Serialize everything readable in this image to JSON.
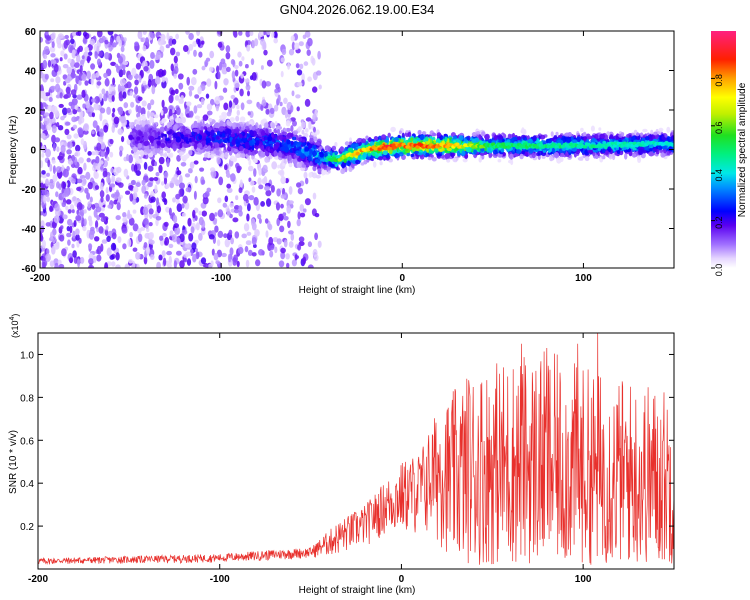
{
  "title": "GN04.2026.062.19.00.E34",
  "chart_data": [
    {
      "type": "heatmap",
      "title": "GN04.2026.062.19.00.E34",
      "xlabel": "Height of straight line (km)",
      "ylabel": "Frequency (Hz)",
      "xlim": [
        -200,
        150
      ],
      "ylim": [
        -60,
        60
      ],
      "xticks": [
        -200,
        -100,
        0,
        100
      ],
      "xtick_labels": [
        "-200",
        "-100",
        "0",
        "100"
      ],
      "yticks": [
        60,
        40,
        20,
        0,
        -20,
        -40,
        -60
      ],
      "ytick_labels": [
        "60",
        "40",
        "20",
        "0",
        "-20",
        "-40",
        "-60"
      ],
      "colorbar": {
        "label": "Normalized spectral amplitude",
        "range": [
          0,
          1
        ],
        "ticks": [
          0.0,
          0.2,
          0.4,
          0.6,
          0.8
        ],
        "tick_labels": [
          "0.0",
          "0.2",
          "0.4",
          "0.6",
          "0.8"
        ]
      },
      "ridge_frequency": [
        {
          "x": -145,
          "y": 6
        },
        {
          "x": -100,
          "y": 6
        },
        {
          "x": -60,
          "y": 2
        },
        {
          "x": -45,
          "y": -4
        },
        {
          "x": -35,
          "y": -5
        },
        {
          "x": -20,
          "y": 0
        },
        {
          "x": 0,
          "y": 2
        },
        {
          "x": 20,
          "y": 2
        },
        {
          "x": 50,
          "y": 2
        },
        {
          "x": 100,
          "y": 2
        },
        {
          "x": 150,
          "y": 3
        }
      ],
      "ridge_peak_amplitude": [
        {
          "x": -145,
          "y": 0.2
        },
        {
          "x": -100,
          "y": 0.3
        },
        {
          "x": -60,
          "y": 0.35
        },
        {
          "x": -45,
          "y": 0.45
        },
        {
          "x": -30,
          "y": 0.75
        },
        {
          "x": -10,
          "y": 0.95
        },
        {
          "x": 0,
          "y": 0.9
        },
        {
          "x": 20,
          "y": 0.9
        },
        {
          "x": 50,
          "y": 0.55
        },
        {
          "x": 100,
          "y": 0.5
        },
        {
          "x": 150,
          "y": 0.45
        }
      ],
      "noise_cutoff_x": -45
    },
    {
      "type": "line",
      "xlabel": "Height of straight line (km)",
      "ylabel": "SNR (10 * v/v)",
      "multiplier_label": "(x10",
      "multiplier_exponent": "4",
      "multiplier_close": ")",
      "xlim": [
        -200,
        150
      ],
      "ylim": [
        0,
        1.1
      ],
      "xticks": [
        -200,
        -100,
        0,
        100
      ],
      "xtick_labels": [
        "-200",
        "-100",
        "0",
        "100"
      ],
      "yticks": [
        0.2,
        0.4,
        0.6,
        0.8,
        1.0
      ],
      "ytick_labels": [
        "0.2",
        "0.4",
        "0.6",
        "0.8",
        "1.0"
      ],
      "color": "#e8302c",
      "envelope": {
        "x": [
          -200,
          -150,
          -100,
          -70,
          -50,
          -35,
          -20,
          -10,
          0,
          10,
          20,
          30,
          40,
          60,
          80,
          100,
          120,
          150
        ],
        "base": [
          0.02,
          0.025,
          0.03,
          0.04,
          0.05,
          0.06,
          0.1,
          0.15,
          0.15,
          0.15,
          0.1,
          0.04,
          0.02,
          0.02,
          0.02,
          0.02,
          0.02,
          0.02
        ],
        "top": [
          0.05,
          0.06,
          0.07,
          0.09,
          0.1,
          0.22,
          0.3,
          0.4,
          0.5,
          0.55,
          0.75,
          0.85,
          0.95,
          1.0,
          1.02,
          0.95,
          0.9,
          0.85
        ]
      },
      "peaks": [
        {
          "x": 37,
          "y": 0.88
        },
        {
          "x": 66,
          "y": 1.05
        },
        {
          "x": 80,
          "y": 1.03
        },
        {
          "x": 97,
          "y": 1.05
        },
        {
          "x": 108,
          "y": 1.1
        }
      ]
    }
  ]
}
